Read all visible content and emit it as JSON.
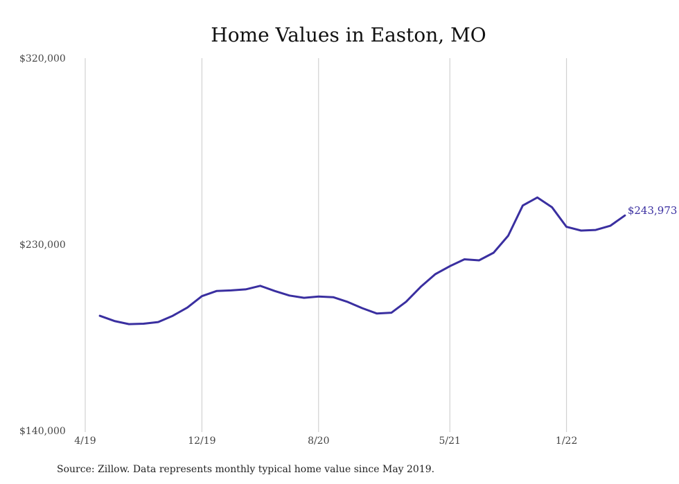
{
  "chart_data": {
    "type": "line",
    "title": "Home Values in Easton, MO",
    "xlabel": "",
    "ylabel": "",
    "x": [
      "5/19",
      "6/19",
      "7/19",
      "8/19",
      "9/19",
      "10/19",
      "11/19",
      "12/19",
      "1/20",
      "2/20",
      "3/20",
      "4/20",
      "5/20",
      "6/20",
      "7/20",
      "8/20",
      "9/20",
      "10/20",
      "11/20",
      "12/20",
      "1/21",
      "2/21",
      "3/21",
      "4/21",
      "5/21",
      "6/21",
      "7/21",
      "8/21",
      "9/21",
      "10/21",
      "11/21",
      "12/21",
      "1/22",
      "2/22",
      "3/22",
      "4/22",
      "5/22"
    ],
    "x_ticks": [
      "4/19",
      "12/19",
      "8/20",
      "5/21",
      "1/22"
    ],
    "y_ticks": [
      "$320,000",
      "$230,000",
      "$140,000"
    ],
    "ylim": [
      140000,
      320000
    ],
    "series": [
      {
        "values": [
          195500,
          193000,
          191500,
          191700,
          192500,
          195500,
          199500,
          205000,
          207500,
          207800,
          208300,
          210000,
          207500,
          205300,
          204200,
          204800,
          204500,
          202200,
          199200,
          196600,
          197000,
          202300,
          209500,
          215600,
          219500,
          222800,
          222300,
          226000,
          234200,
          248800,
          252700,
          248000,
          238500,
          236700,
          237000,
          239000,
          243973
        ]
      }
    ],
    "end_label": "$243,973",
    "colors": {
      "line": "#3a2fa0",
      "grid": "#c8c8c8"
    },
    "grid": "vertical",
    "legend": "none"
  },
  "source_note": "Source: Zillow. Data represents monthly typical home value since May 2019."
}
